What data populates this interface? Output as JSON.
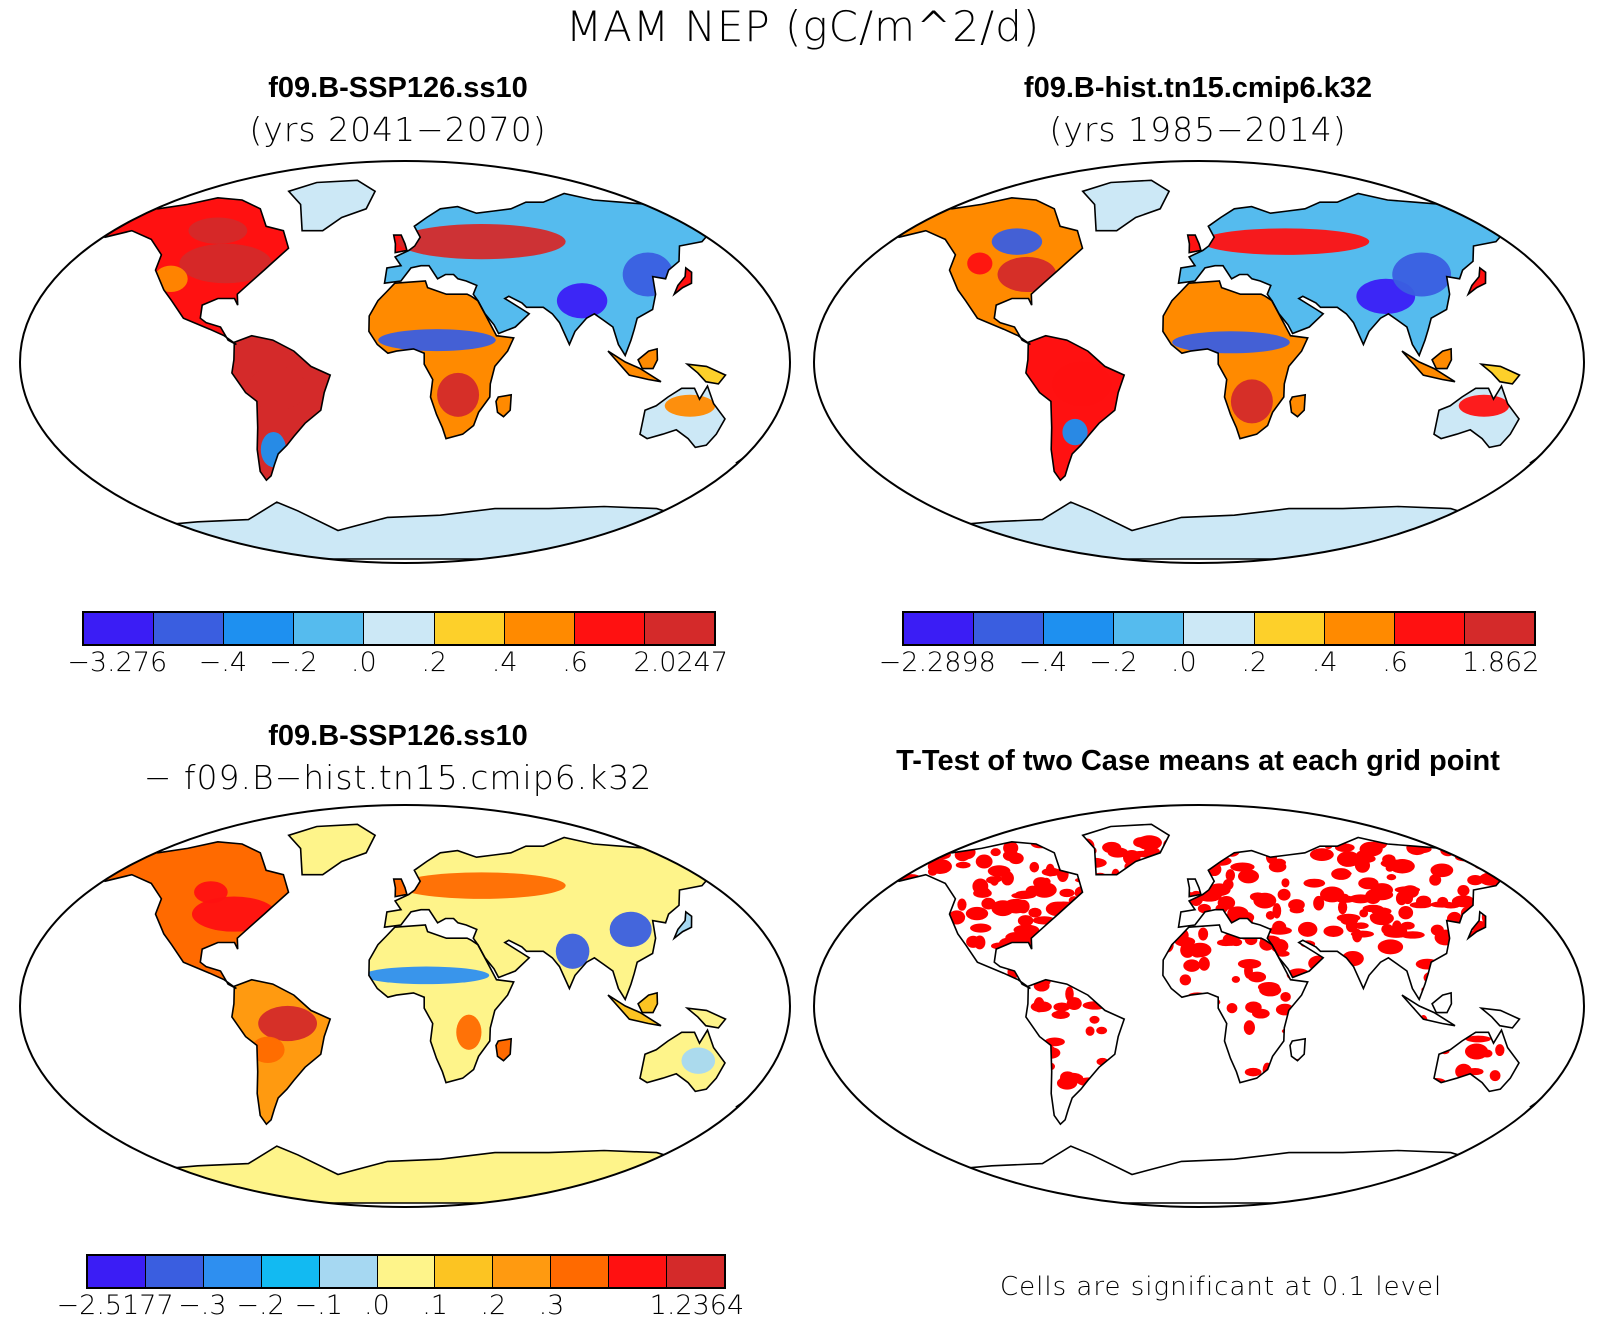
{
  "title": "MAM NEP (gC/m^2/d)",
  "panels": [
    {
      "title": "f09.B-SSP126.ss10",
      "subtitle": "(yrs 2041−2070)"
    },
    {
      "title": "f09.B-hist.tn15.cmip6.k32",
      "subtitle": "(yrs 1985−2014)"
    },
    {
      "title": "f09.B-SSP126.ss10",
      "subtitle": "− f09.B−hist.tn15.cmip6.k32"
    },
    {
      "title": "T-Test of two Case means at each grid point",
      "subtitle": ""
    }
  ],
  "colorbars": [
    {
      "colors": [
        "#3b1df5",
        "#3a5ee0",
        "#1e90f0",
        "#55bbee",
        "#cce8f6",
        "#fdd02a",
        "#ff8a00",
        "#ff1111",
        "#d42a2a"
      ],
      "labels": [
        "−3.276",
        "−.4",
        "−.2",
        ".0",
        ".2",
        ".4",
        ".6",
        "2.0247"
      ]
    },
    {
      "colors": [
        "#3b1df5",
        "#3a5ee0",
        "#1e90f0",
        "#55bbee",
        "#cce8f6",
        "#fdd02a",
        "#ff8a00",
        "#ff1111",
        "#d42a2a"
      ],
      "labels": [
        "−2.2898",
        "−.4",
        "−.2",
        ".0",
        ".2",
        ".4",
        ".6",
        "1.862"
      ]
    },
    {
      "colors": [
        "#3b1df5",
        "#3a5ee0",
        "#2e8ff0",
        "#12baf2",
        "#a6d8f2",
        "#fef48a",
        "#fcc422",
        "#ff9a10",
        "#ff6a00",
        "#ff1111",
        "#d42a2a"
      ],
      "labels": [
        "−2.5177",
        "−.3",
        "−.2",
        "−.1",
        ".0",
        ".1",
        ".2",
        ".3",
        "1.2364"
      ]
    }
  ],
  "note": "Cells are significant at 0.1 level",
  "map_colors": {
    "ocean": "#ffffff",
    "coast": "#000000",
    "significant": "#ff0000"
  }
}
